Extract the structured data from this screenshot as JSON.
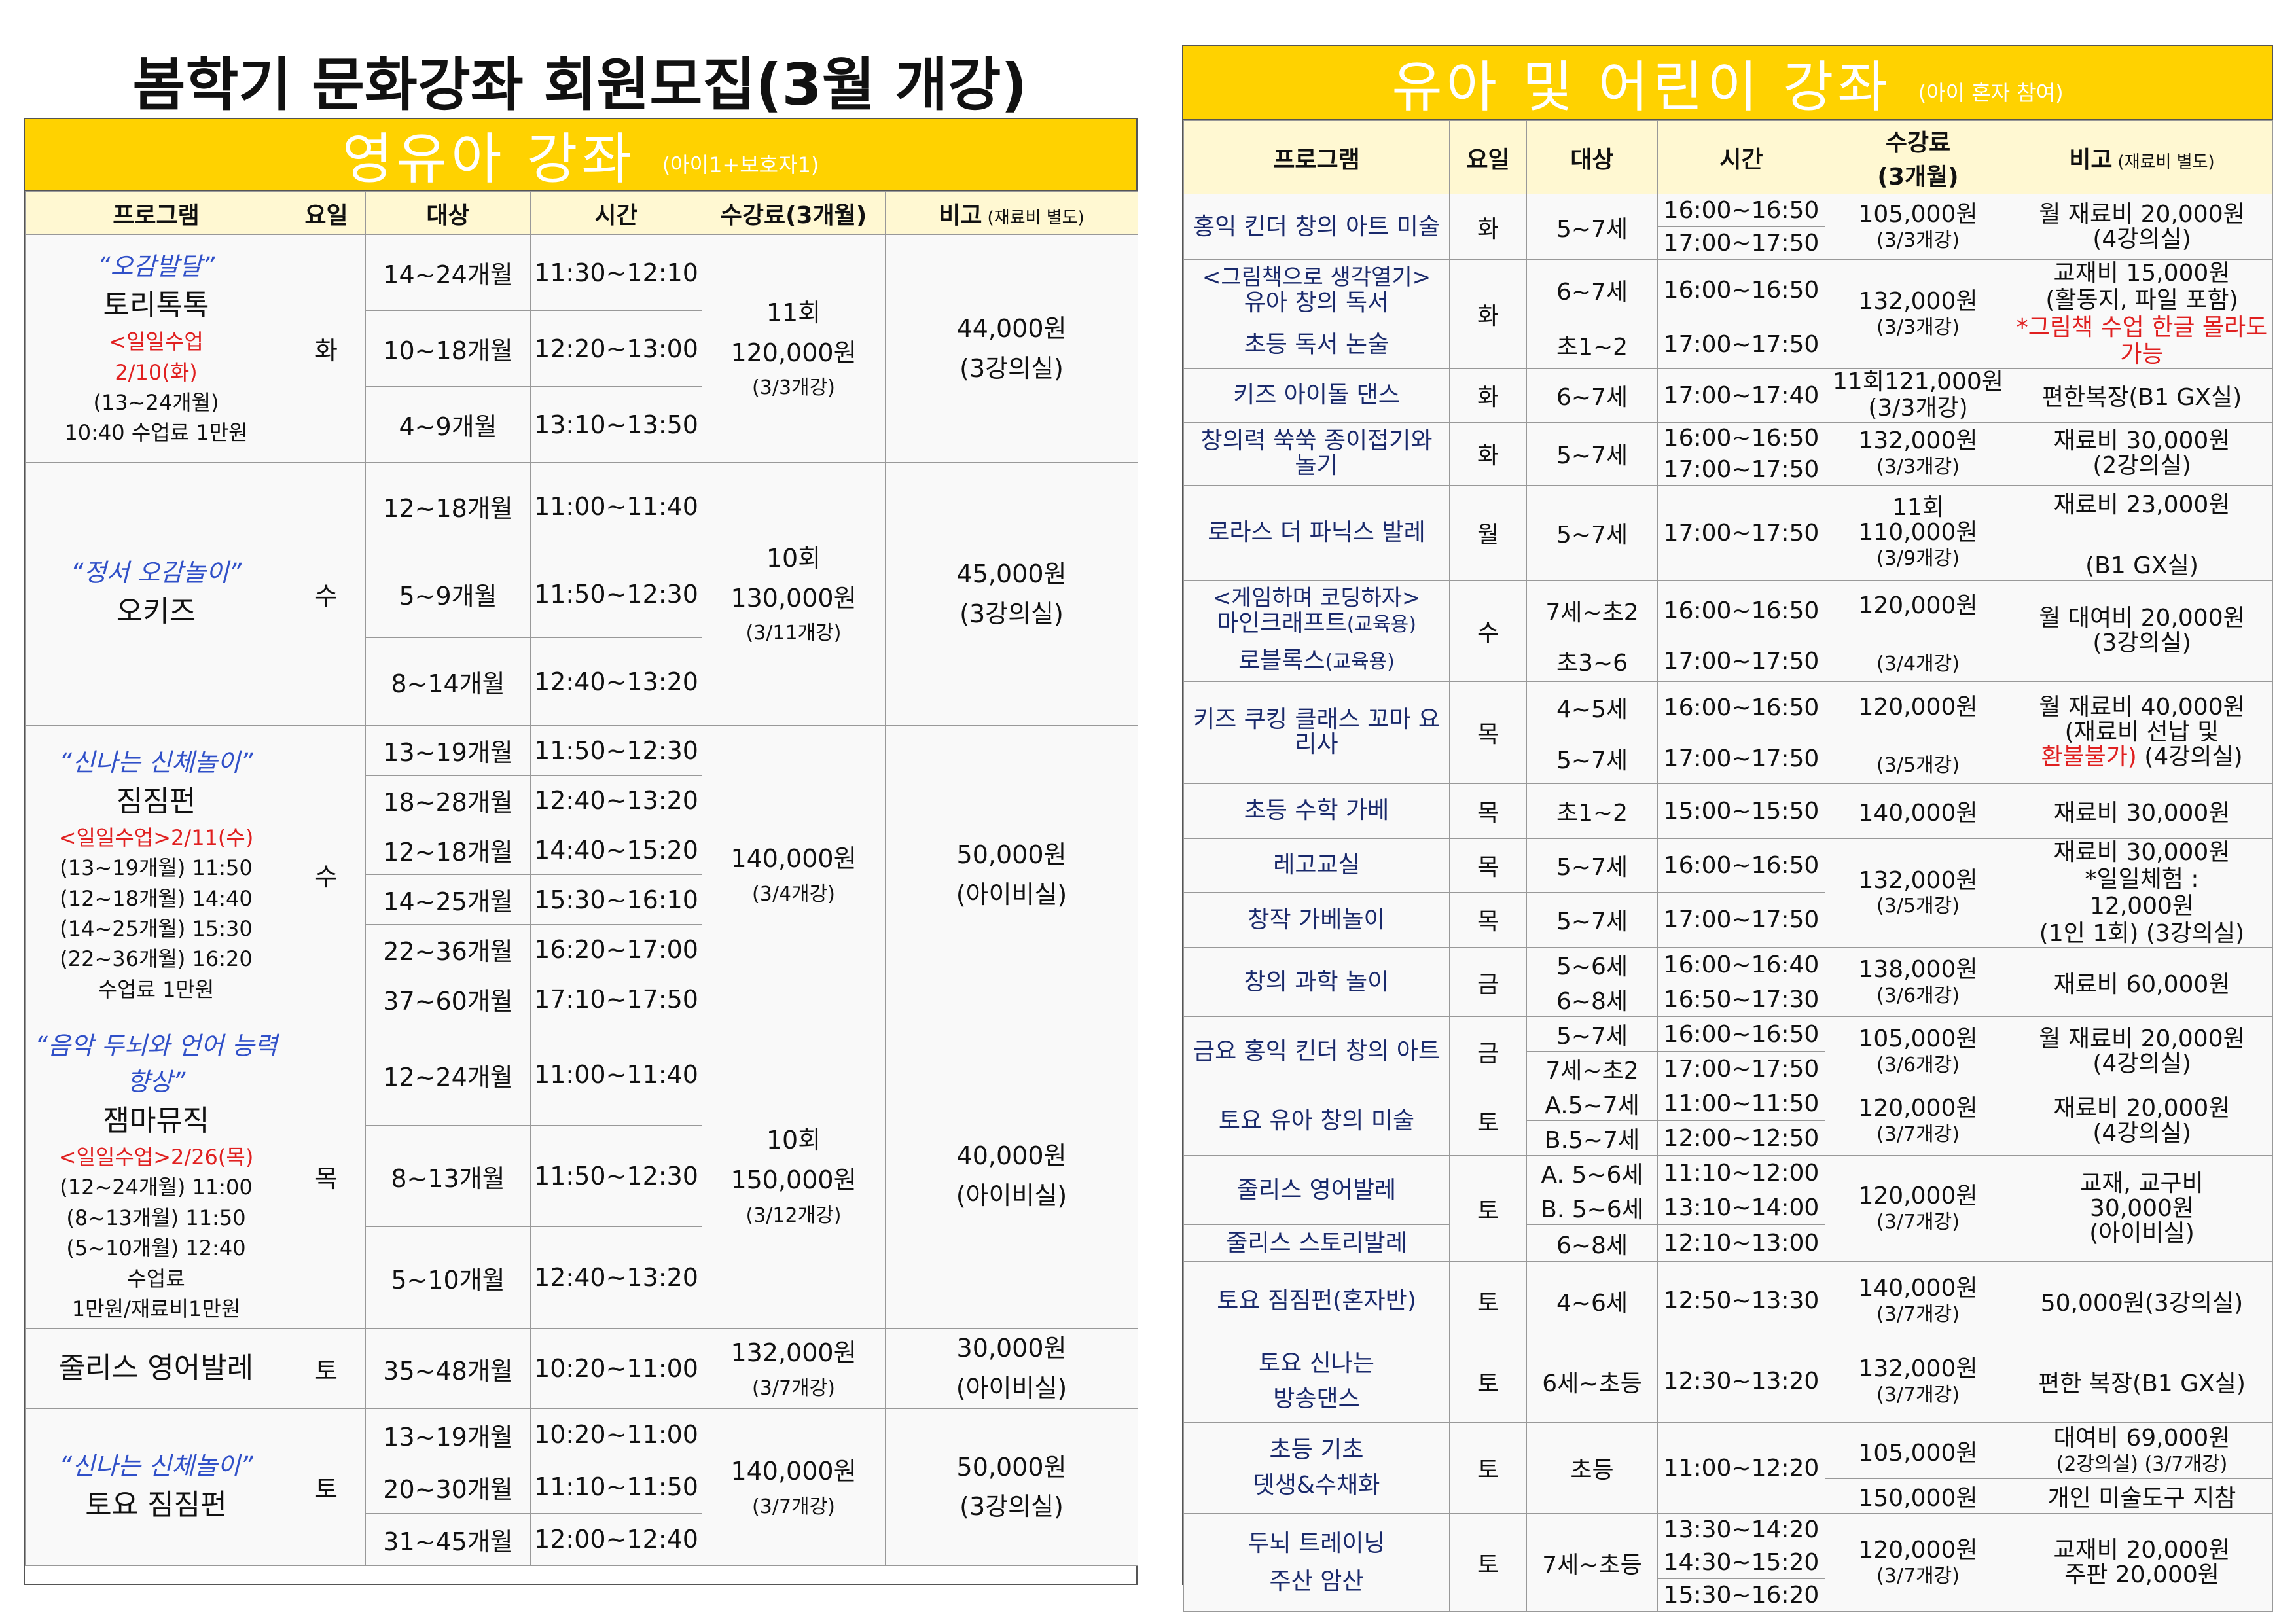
{
  "page_title": "봄학기 문화강좌 회원모집(3월 개강)",
  "left": {
    "banner_title": "영유아 강좌",
    "banner_sub": "(아이1+보호자1)",
    "headers": {
      "program": "프로그램",
      "day": "요일",
      "target": "대상",
      "time": "시간",
      "fee": "수강료(3개월)",
      "note": "비고",
      "note_small": "(재료비 별도)"
    },
    "programs": [
      {
        "slogan": "“오감발달”",
        "name": "토리톡톡",
        "notes": [
          "<일일수업",
          "2/10(화)",
          "(13~24개월)",
          "10:40 수업료 1만원"
        ],
        "day": "화",
        "rows": [
          {
            "target": "14~24개월",
            "time": "11:30~12:10"
          },
          {
            "target": "10~18개월",
            "time": "12:20~13:00"
          },
          {
            "target": "4~9개월",
            "time": "13:10~13:50"
          }
        ],
        "fee": [
          "11회",
          "120,000원",
          "(3/3개강)"
        ],
        "note": [
          "44,000원",
          "(3강의실)"
        ]
      },
      {
        "slogan": "“정서 오감놀이”",
        "name": "오키즈",
        "notes": [],
        "day": "수",
        "rows": [
          {
            "target": "12~18개월",
            "time": "11:00~11:40"
          },
          {
            "target": "5~9개월",
            "time": "11:50~12:30"
          },
          {
            "target": "8~14개월",
            "time": "12:40~13:20"
          }
        ],
        "fee": [
          "10회",
          "130,000원",
          "(3/11개강)"
        ],
        "note": [
          "45,000원",
          "(3강의실)"
        ]
      },
      {
        "slogan": "“신나는 신체놀이”",
        "name": "짐짐펀",
        "notes": [
          "<일일수업>2/11(수)",
          "(13~19개월) 11:50",
          "(12~18개월) 14:40",
          "(14~25개월) 15:30",
          "(22~36개월) 16:20",
          "수업료 1만원"
        ],
        "day": "수",
        "rows": [
          {
            "target": "13~19개월",
            "time": "11:50~12:30"
          },
          {
            "target": "18~28개월",
            "time": "12:40~13:20"
          },
          {
            "target": "12~18개월",
            "time": "14:40~15:20"
          },
          {
            "target": "14~25개월",
            "time": "15:30~16:10"
          },
          {
            "target": "22~36개월",
            "time": "16:20~17:00"
          },
          {
            "target": "37~60개월",
            "time": "17:10~17:50"
          }
        ],
        "fee": [
          "140,000원",
          "(3/4개강)"
        ],
        "note": [
          "50,000원",
          "(아이비실)"
        ]
      },
      {
        "slogan": "“음악 두뇌와 언어 능력 향상”",
        "name": "잼마뮤직",
        "notes": [
          "<일일수업>2/26(목)",
          "(12~24개월) 11:00",
          "(8~13개월) 11:50",
          "(5~10개월) 12:40",
          "수업료",
          "1만원/재료비1만원"
        ],
        "day": "목",
        "rows": [
          {
            "target": "12~24개월",
            "time": "11:00~11:40"
          },
          {
            "target": "8~13개월",
            "time": "11:50~12:30"
          },
          {
            "target": "5~10개월",
            "time": "12:40~13:20"
          }
        ],
        "fee": [
          "10회",
          "150,000원",
          "(3/12개강)"
        ],
        "note": [
          "40,000원",
          "(아이비실)"
        ]
      },
      {
        "slogan": "",
        "name": "줄리스 영어발레",
        "notes": [],
        "day": "토",
        "rows": [
          {
            "target": "35~48개월",
            "time": "10:20~11:00"
          }
        ],
        "fee": [
          "132,000원",
          "(3/7개강)"
        ],
        "note": [
          "30,000원",
          "(아이비실)"
        ]
      },
      {
        "slogan": "“신나는 신체놀이”",
        "name": "토요 짐짐펀",
        "notes": [],
        "day": "토",
        "rows": [
          {
            "target": "13~19개월",
            "time": "10:20~11:00"
          },
          {
            "target": "20~30개월",
            "time": "11:10~11:50"
          },
          {
            "target": "31~45개월",
            "time": "12:00~12:40"
          }
        ],
        "fee": [
          "140,000원",
          "(3/7개강)"
        ],
        "note": [
          "50,000원",
          "(3강의실)"
        ]
      }
    ]
  },
  "right": {
    "banner_title": "유아 및 어린이 강좌",
    "banner_sub": "(아이 혼자 참여)",
    "headers": {
      "program": "프로그램",
      "day": "요일",
      "target": "대상",
      "time": "시간",
      "fee": "수강료",
      "fee2": "(3개월)",
      "note": "비고",
      "note_small": "(재료비 별도)"
    },
    "r": {
      "p1": "홍익 킨더 창의 아트 미술",
      "p1d": "화",
      "p1t": "5~7세",
      "p1h1": "16:00~16:50",
      "p1h2": "17:00~17:50",
      "p1f": "105,000원",
      "p1f2": "(3/3개강)",
      "p1n": "월 재료비 20,000원",
      "p1n2": "(4강의실)",
      "p2": "<그림책으로 생각열기>",
      "p2b": "유아 창의 독서",
      "p2d": "화",
      "p2t": "6~7세",
      "p2h": "16:00~16:50",
      "p2f": "132,000원",
      "p2f2": "(3/3개강)",
      "p2n1": "교재비 15,000원",
      "p2n2": "(활동지, 파일 포함)",
      "p2n3": "*그림책 수업 한글 몰라도 가능",
      "p3": "초등 독서 논술",
      "p3t": "초1~2",
      "p3h": "17:00~17:50",
      "p4": "키즈 아이돌 댄스",
      "p4d": "화",
      "p4t": "6~7세",
      "p4h": "17:00~17:40",
      "p4f": "11회121,000원",
      "p4f2": "(3/3개강)",
      "p4n": "편한복장(B1 GX실)",
      "p5": "창의력 쑥쑥 종이접기와 놀기",
      "p5d": "화",
      "p5t": "5~7세",
      "p5h1": "16:00~16:50",
      "p5h2": "17:00~17:50",
      "p5f": "132,000원",
      "p5f2": "(3/3개강)",
      "p5n": "재료비 30,000원",
      "p5n2": "(2강의실)",
      "p6": "로라스 더 파닉스 발레",
      "p6d": "월",
      "p6t": "5~7세",
      "p6h": "17:00~17:50",
      "p6f1": "11회",
      "p6f": "110,000원",
      "p6f2": "(3/9개강)",
      "p6n": "재료비 23,000원",
      "p6n2": "(B1 GX실)",
      "p7a": "<게임하며 코딩하자>",
      "p7b": "마인크래프트",
      "p7c": "(교육용)",
      "p7d": "수",
      "p7t": "7세~초2",
      "p7h": "16:00~16:50",
      "p7f": "120,000원",
      "p7f2": "(3/4개강)",
      "p7n": "월 대여비 20,000원",
      "p7n2": "(3강의실)",
      "p8a": "로블록스",
      "p8b": "(교육용)",
      "p8t": "초3~6",
      "p8h": "17:00~17:50",
      "p9": "키즈 쿠킹 클래스 꼬마 요리사",
      "p9d": "목",
      "p9t1": "4~5세",
      "p9h1": "16:00~16:50",
      "p9t2": "5~7세",
      "p9h2": "17:00~17:50",
      "p9f": "120,000원",
      "p9f2": "(3/5개강)",
      "p9n1": "월 재료비 40,000원",
      "p9n2": "(재료비 선납 및",
      "p9n3": "환불불가)",
      "p9n4": " (4강의실)",
      "p10": "초등 수학 가베",
      "p10d": "목",
      "p10t": "초1~2",
      "p10h": "15:00~15:50",
      "p10f": "140,000원",
      "p10n": "재료비 30,000원",
      "p11": "레고교실",
      "p11d": "목",
      "p11t": "5~7세",
      "p11h": "16:00~16:50",
      "p11f": "132,000원",
      "p11f2": "(3/5개강)",
      "p11n1": "재료비 30,000원",
      "p11n2": "*일일체험 :",
      "p11n3": "12,000원",
      "p11n4": "(1인 1회) (3강의실)",
      "p12": "창작 가베놀이",
      "p12d": "목",
      "p12t": "5~7세",
      "p12h": "17:00~17:50",
      "p13": "창의 과학 놀이",
      "p13d": "금",
      "p13t1": "5~6세",
      "p13h1": "16:00~16:40",
      "p13t2": "6~8세",
      "p13h2": "16:50~17:30",
      "p13f": "138,000원",
      "p13f2": "(3/6개강)",
      "p13n": "재료비 60,000원",
      "p14": "금요 홍익 킨더 창의 아트",
      "p14d": "금",
      "p14t1": "5~7세",
      "p14h1": "16:00~16:50",
      "p14t2": "7세~초2",
      "p14h2": "17:00~17:50",
      "p14f": "105,000원",
      "p14f2": "(3/6개강)",
      "p14n": "월 재료비 20,000원",
      "p14n2": "(4강의실)",
      "p15": "토요 유아 창의 미술",
      "p15d": "토",
      "p15t1": "A.5~7세",
      "p15h1": "11:00~11:50",
      "p15t2": "B.5~7세",
      "p15h2": "12:00~12:50",
      "p15f": "120,000원",
      "p15f2": "(3/7개강)",
      "p15n": "재료비 20,000원",
      "p15n2": "(4강의실)",
      "p16": "줄리스 영어발레",
      "p16d": "토",
      "p16t1": "A. 5~6세",
      "p16h1": "11:10~12:00",
      "p16t2": "B. 5~6세",
      "p16h2": "13:10~14:00",
      "p16f": "120,000원",
      "p16f2": "(3/7개강)",
      "p16n1": "교재, 교구비",
      "p16n2": "30,000원",
      "p16n3": "(아이비실)",
      "p17": "줄리스 스토리발레",
      "p17t": "6~8세",
      "p17h": "12:10~13:00",
      "p18": "토요 짐짐펀(혼자반)",
      "p18d": "토",
      "p18t": "4~6세",
      "p18h": "12:50~13:30",
      "p18f": "140,000원",
      "p18f2": "(3/7개강)",
      "p18n": "50,000원(3강의실)",
      "p19a": "토요 신나는",
      "p19b": "방송댄스",
      "p19d": "토",
      "p19t": "6세~초등",
      "p19h": "12:30~13:20",
      "p19f": "132,000원",
      "p19f2": "(3/7개강)",
      "p19n": "편한 복장(B1 GX실)",
      "p20a": "초등 기초",
      "p20b": "뎃생&수채화",
      "p20d": "토",
      "p20t": "초등",
      "p20h": "11:00~12:20",
      "p20f1": "105,000원",
      "p20f2": "150,000원",
      "p20n1": "대여비 69,000원",
      "p20n2": "(2강의실) (3/7개강)",
      "p20n3": "개인 미술도구 지참",
      "p21a": "두뇌 트레이닝",
      "p21b": "주산 암산",
      "p21d": "토",
      "p21t": "7세~초등",
      "p21h1": "13:30~14:20",
      "p21h2": "14:30~15:20",
      "p21h3": "15:30~16:20",
      "p21f": "120,000원",
      "p21f2": "(3/7개강)",
      "p21n1": "교재비 20,000원",
      "p21n2": "주판 20,000원"
    }
  },
  "colors": {
    "banner": "#ffd200",
    "header_bg": "#fff8d2",
    "slogan": "#3050c8",
    "red_note": "#e02020",
    "navy": "#1a2a6c"
  }
}
